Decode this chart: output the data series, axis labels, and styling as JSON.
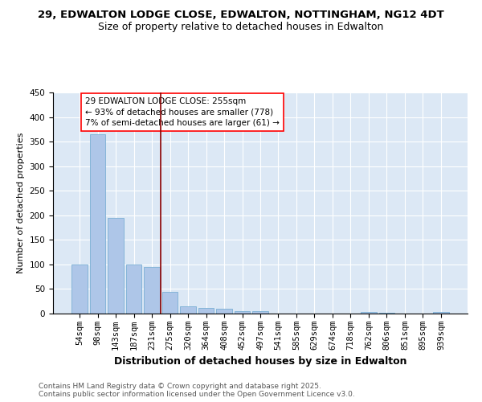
{
  "title1": "29, EDWALTON LODGE CLOSE, EDWALTON, NOTTINGHAM, NG12 4DT",
  "title2": "Size of property relative to detached houses in Edwalton",
  "xlabel": "Distribution of detached houses by size in Edwalton",
  "ylabel": "Number of detached properties",
  "categories": [
    "54sqm",
    "98sqm",
    "143sqm",
    "187sqm",
    "231sqm",
    "275sqm",
    "320sqm",
    "364sqm",
    "408sqm",
    "452sqm",
    "497sqm",
    "541sqm",
    "585sqm",
    "629sqm",
    "674sqm",
    "718sqm",
    "762sqm",
    "806sqm",
    "851sqm",
    "895sqm",
    "939sqm"
  ],
  "values": [
    100,
    365,
    195,
    100,
    95,
    45,
    15,
    12,
    10,
    5,
    5,
    0,
    0,
    0,
    0,
    0,
    4,
    2,
    0,
    0,
    3
  ],
  "bar_color": "#aec6e8",
  "bar_edge_color": "#7aafd4",
  "bar_width": 0.85,
  "red_line_x": 4.5,
  "annotation_text": "29 EDWALTON LODGE CLOSE: 255sqm\n← 93% of detached houses are smaller (778)\n7% of semi-detached houses are larger (61) →",
  "ylim": [
    0,
    450
  ],
  "yticks": [
    0,
    50,
    100,
    150,
    200,
    250,
    300,
    350,
    400,
    450
  ],
  "footer1": "Contains HM Land Registry data © Crown copyright and database right 2025.",
  "footer2": "Contains public sector information licensed under the Open Government Licence v3.0.",
  "bg_color": "#dce8f5",
  "title1_fontsize": 9.5,
  "title2_fontsize": 9,
  "xlabel_fontsize": 9,
  "ylabel_fontsize": 8,
  "tick_fontsize": 7.5,
  "footer_fontsize": 6.5,
  "annot_fontsize": 7.5
}
